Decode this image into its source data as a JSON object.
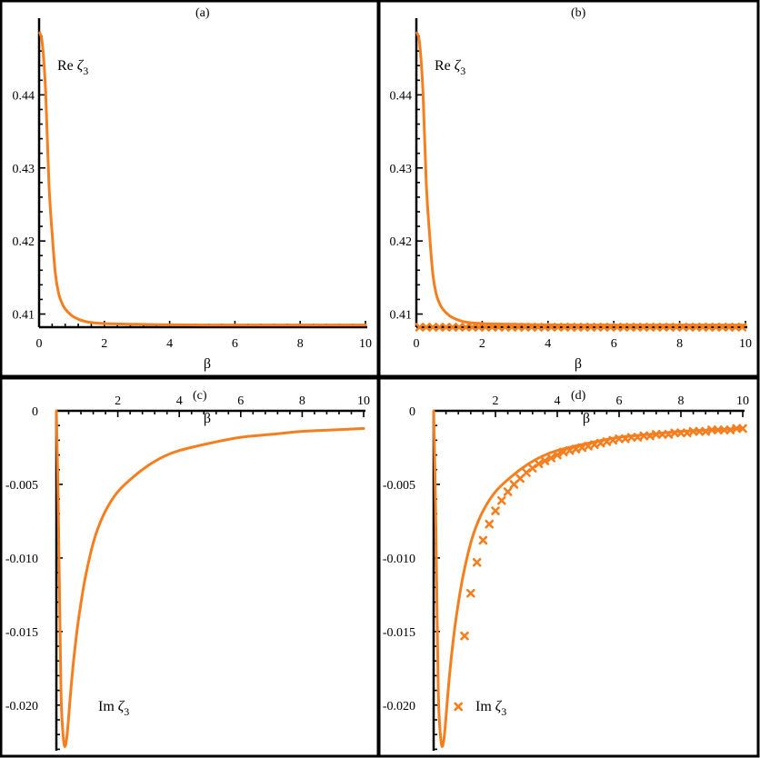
{
  "chart_data": [
    {
      "type": "line",
      "panel": "(a)",
      "xlabel": "β",
      "curve_label": {
        "prefix": "Re",
        "symbol": "ζ",
        "sub": "3"
      },
      "xlim": [
        0,
        10
      ],
      "ylim": [
        0.4082,
        0.4495
      ],
      "xticks": [
        "0",
        "2",
        "4",
        "6",
        "8",
        "10"
      ],
      "yticks": [
        "0.41",
        "0.42",
        "0.43",
        "0.44"
      ],
      "series": [
        {
          "values": [
            [
              0.02,
              0.4485
            ],
            [
              0.1,
              0.447
            ],
            [
              0.2,
              0.4405
            ],
            [
              0.3,
              0.428
            ],
            [
              0.4,
              0.421
            ],
            [
              0.5,
              0.4155
            ],
            [
              0.6,
              0.4128
            ],
            [
              0.7,
              0.4115
            ],
            [
              0.8,
              0.4107
            ],
            [
              1.0,
              0.4098
            ],
            [
              1.2,
              0.4093
            ],
            [
              1.5,
              0.4089
            ],
            [
              2.0,
              0.4087
            ],
            [
              3.0,
              0.4086
            ],
            [
              5.0,
              0.4085
            ],
            [
              10.0,
              0.4085
            ]
          ]
        }
      ]
    },
    {
      "type": "line",
      "panel": "(b)",
      "xlabel": "β",
      "curve_label": {
        "prefix": "Re",
        "symbol": "ζ",
        "sub": "3"
      },
      "xlim": [
        0,
        10
      ],
      "ylim": [
        0.4082,
        0.4495
      ],
      "xticks": [
        "0",
        "2",
        "4",
        "6",
        "8",
        "10"
      ],
      "yticks": [
        "0.41",
        "0.42",
        "0.43",
        "0.44"
      ],
      "series": [
        {
          "values": [
            [
              0.02,
              0.4485
            ],
            [
              0.1,
              0.447
            ],
            [
              0.2,
              0.4405
            ],
            [
              0.3,
              0.428
            ],
            [
              0.4,
              0.421
            ],
            [
              0.5,
              0.4155
            ],
            [
              0.6,
              0.4128
            ],
            [
              0.7,
              0.4115
            ],
            [
              0.8,
              0.4107
            ],
            [
              1.0,
              0.4098
            ],
            [
              1.2,
              0.4093
            ],
            [
              1.5,
              0.4089
            ],
            [
              2.0,
              0.4087
            ],
            [
              3.0,
              0.4086
            ],
            [
              5.0,
              0.4085
            ],
            [
              10.0,
              0.4085
            ]
          ]
        },
        {
          "marker": "x",
          "values": [
            [
              0.1,
              0.4082
            ],
            [
              0.3,
              0.4082
            ],
            [
              0.5,
              0.4082
            ],
            [
              0.7,
              0.4082
            ],
            [
              0.9,
              0.4082
            ],
            [
              1.1,
              0.4082
            ],
            [
              1.3,
              0.4082
            ],
            [
              1.5,
              0.4082
            ],
            [
              1.7,
              0.4082
            ],
            [
              1.9,
              0.4082
            ],
            [
              2.1,
              0.4082
            ],
            [
              2.3,
              0.4082
            ],
            [
              2.5,
              0.4082
            ],
            [
              2.7,
              0.4082
            ],
            [
              2.9,
              0.4082
            ],
            [
              3.1,
              0.4082
            ],
            [
              3.3,
              0.4082
            ],
            [
              3.5,
              0.4082
            ],
            [
              3.7,
              0.4082
            ],
            [
              3.9,
              0.4082
            ],
            [
              4.1,
              0.4082
            ],
            [
              4.3,
              0.4082
            ],
            [
              4.5,
              0.4082
            ],
            [
              4.7,
              0.4082
            ],
            [
              4.9,
              0.4082
            ],
            [
              5.1,
              0.4082
            ],
            [
              5.3,
              0.4082
            ],
            [
              5.5,
              0.4082
            ],
            [
              5.7,
              0.4082
            ],
            [
              5.9,
              0.4082
            ],
            [
              6.1,
              0.4082
            ],
            [
              6.3,
              0.4082
            ],
            [
              6.5,
              0.4082
            ],
            [
              6.7,
              0.4082
            ],
            [
              6.9,
              0.4082
            ],
            [
              7.1,
              0.4082
            ],
            [
              7.3,
              0.4082
            ],
            [
              7.5,
              0.4082
            ],
            [
              7.7,
              0.4082
            ],
            [
              7.9,
              0.4082
            ],
            [
              8.1,
              0.4082
            ],
            [
              8.3,
              0.4082
            ],
            [
              8.5,
              0.4082
            ],
            [
              8.7,
              0.4082
            ],
            [
              8.9,
              0.4082
            ],
            [
              9.1,
              0.4082
            ],
            [
              9.3,
              0.4082
            ],
            [
              9.5,
              0.4082
            ],
            [
              9.7,
              0.4082
            ],
            [
              9.9,
              0.4082
            ]
          ]
        }
      ]
    },
    {
      "type": "line",
      "panel": "(c)",
      "xlabel": "β",
      "curve_label": {
        "prefix": "Im",
        "symbol": "ζ",
        "sub": "3"
      },
      "xlim": [
        0,
        10
      ],
      "ylim": [
        -0.0231,
        0
      ],
      "xticks": [
        "2",
        "4",
        "6",
        "8",
        "10"
      ],
      "yticks": [
        "0",
        "-0.005",
        "-0.010",
        "-0.015",
        "-0.020"
      ],
      "series": [
        {
          "values": [
            [
              0.0,
              0
            ],
            [
              0.05,
              -0.005
            ],
            [
              0.1,
              -0.012
            ],
            [
              0.15,
              -0.019
            ],
            [
              0.2,
              -0.0215
            ],
            [
              0.27,
              -0.0228
            ],
            [
              0.35,
              -0.022
            ],
            [
              0.45,
              -0.0195
            ],
            [
              0.55,
              -0.0172
            ],
            [
              0.7,
              -0.0145
            ],
            [
              0.9,
              -0.0118
            ],
            [
              1.1,
              -0.0098
            ],
            [
              1.3,
              -0.0083
            ],
            [
              1.6,
              -0.0068
            ],
            [
              2.0,
              -0.0055
            ],
            [
              2.5,
              -0.0045
            ],
            [
              3.0,
              -0.0037
            ],
            [
              3.5,
              -0.0031
            ],
            [
              4.0,
              -0.0027
            ],
            [
              5.0,
              -0.0022
            ],
            [
              6.0,
              -0.0018
            ],
            [
              7.0,
              -0.0016
            ],
            [
              8.0,
              -0.0014
            ],
            [
              9.0,
              -0.0013
            ],
            [
              10.0,
              -0.0012
            ]
          ]
        }
      ]
    },
    {
      "type": "line",
      "panel": "(d)",
      "xlabel": "β",
      "curve_label": {
        "prefix": "Im",
        "symbol": "ζ",
        "sub": "3"
      },
      "xlim": [
        0,
        10
      ],
      "ylim": [
        -0.0231,
        0
      ],
      "xticks": [
        "2",
        "4",
        "6",
        "8",
        "10"
      ],
      "yticks": [
        "0",
        "-0.005",
        "-0.010",
        "-0.015",
        "-0.020"
      ],
      "series": [
        {
          "values": [
            [
              0.0,
              0
            ],
            [
              0.05,
              -0.005
            ],
            [
              0.1,
              -0.012
            ],
            [
              0.15,
              -0.019
            ],
            [
              0.2,
              -0.0215
            ],
            [
              0.27,
              -0.0228
            ],
            [
              0.35,
              -0.022
            ],
            [
              0.45,
              -0.0195
            ],
            [
              0.55,
              -0.0172
            ],
            [
              0.7,
              -0.0145
            ],
            [
              0.9,
              -0.0118
            ],
            [
              1.1,
              -0.0098
            ],
            [
              1.3,
              -0.0083
            ],
            [
              1.6,
              -0.0068
            ],
            [
              2.0,
              -0.0055
            ],
            [
              2.5,
              -0.0045
            ],
            [
              3.0,
              -0.0037
            ],
            [
              3.5,
              -0.0031
            ],
            [
              4.0,
              -0.0027
            ],
            [
              5.0,
              -0.0022
            ],
            [
              6.0,
              -0.0018
            ],
            [
              7.0,
              -0.0016
            ],
            [
              8.0,
              -0.0014
            ],
            [
              9.0,
              -0.0013
            ],
            [
              10.0,
              -0.0012
            ]
          ]
        },
        {
          "marker": "x",
          "values": [
            [
              0.8,
              -0.0201
            ],
            [
              1.0,
              -0.0153
            ],
            [
              1.2,
              -0.0124
            ],
            [
              1.4,
              -0.0103
            ],
            [
              1.6,
              -0.0088
            ],
            [
              1.8,
              -0.0077
            ],
            [
              2.0,
              -0.0068
            ],
            [
              2.2,
              -0.0061
            ],
            [
              2.4,
              -0.0055
            ],
            [
              2.6,
              -0.005
            ],
            [
              2.8,
              -0.0046
            ],
            [
              3.0,
              -0.0042
            ],
            [
              3.2,
              -0.0039
            ],
            [
              3.4,
              -0.0036
            ],
            [
              3.6,
              -0.0034
            ],
            [
              3.8,
              -0.0032
            ],
            [
              4.0,
              -0.003
            ],
            [
              4.2,
              -0.0028
            ],
            [
              4.4,
              -0.0027
            ],
            [
              4.6,
              -0.0026
            ],
            [
              4.8,
              -0.0025
            ],
            [
              5.0,
              -0.0024
            ],
            [
              5.2,
              -0.0023
            ],
            [
              5.4,
              -0.0022
            ],
            [
              5.6,
              -0.0021
            ],
            [
              5.8,
              -0.002
            ],
            [
              6.0,
              -0.0019
            ],
            [
              6.2,
              -0.0019
            ],
            [
              6.4,
              -0.0018
            ],
            [
              6.6,
              -0.0018
            ],
            [
              6.8,
              -0.0017
            ],
            [
              7.0,
              -0.0017
            ],
            [
              7.2,
              -0.0016
            ],
            [
              7.4,
              -0.0016
            ],
            [
              7.6,
              -0.0016
            ],
            [
              7.8,
              -0.0015
            ],
            [
              8.0,
              -0.0015
            ],
            [
              8.2,
              -0.0015
            ],
            [
              8.4,
              -0.0014
            ],
            [
              8.6,
              -0.0014
            ],
            [
              8.8,
              -0.0014
            ],
            [
              9.0,
              -0.0013
            ],
            [
              9.2,
              -0.0013
            ],
            [
              9.4,
              -0.0013
            ],
            [
              9.6,
              -0.0013
            ],
            [
              9.8,
              -0.0012
            ],
            [
              10.0,
              -0.0012
            ]
          ]
        }
      ]
    }
  ]
}
